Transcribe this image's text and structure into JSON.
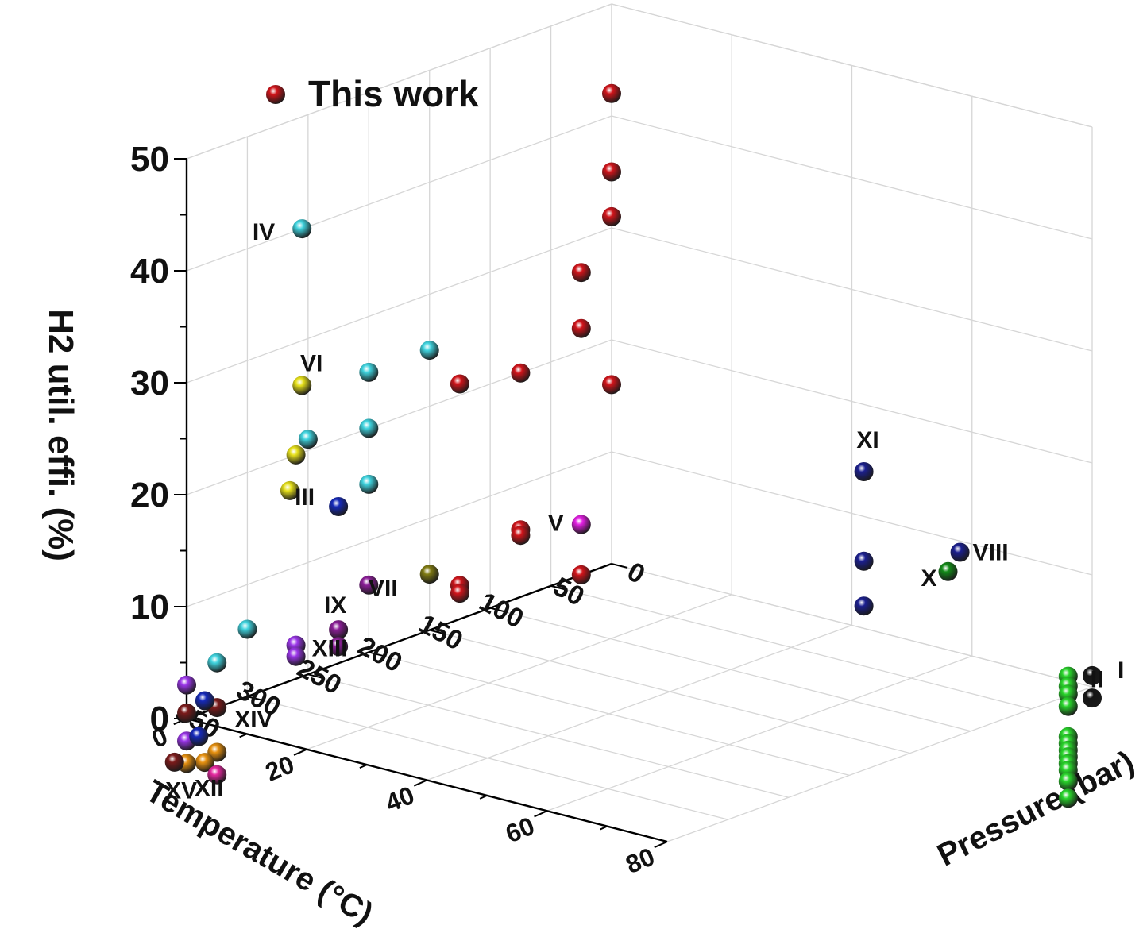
{
  "chart_data": {
    "type": "scatter3d",
    "title": "",
    "xlabel": "Temperature (°C)",
    "ylabel": "Pressure (bar)",
    "zlabel": "H2 util. effi. (%)",
    "xlim": [
      0,
      350
    ],
    "ylim": [
      0,
      80
    ],
    "zlim": [
      0,
      50
    ],
    "xticks": [
      "0",
      "50",
      "100",
      "150",
      "200",
      "250",
      "300",
      "350"
    ],
    "yticks": [
      "0",
      "20",
      "40",
      "60",
      "80"
    ],
    "zticks": [
      "0",
      "10",
      "20",
      "30",
      "40",
      "50"
    ],
    "grid": true,
    "legend": {
      "position": "top-left",
      "entries": [
        {
          "label": "This work",
          "color": "#d0141a"
        }
      ]
    },
    "series": [
      {
        "label": "This work",
        "color": "#d0141a",
        "points": [
          {
            "x": 0,
            "y": 0,
            "z": 42
          },
          {
            "x": 0,
            "y": 0,
            "z": 35
          },
          {
            "x": 0,
            "y": 0,
            "z": 31
          },
          {
            "x": 25,
            "y": 0,
            "z": 27
          },
          {
            "x": 25,
            "y": 0,
            "z": 22
          },
          {
            "x": 75,
            "y": 0,
            "z": 20
          },
          {
            "x": 125,
            "y": 0,
            "z": 21
          },
          {
            "x": 0,
            "y": 0,
            "z": 16
          },
          {
            "x": 75,
            "y": 0,
            "z": 6
          },
          {
            "x": 75,
            "y": 0,
            "z": 5.5
          },
          {
            "x": 125,
            "y": 0,
            "z": 3
          },
          {
            "x": 125,
            "y": 0,
            "z": 2.3
          },
          {
            "x": 25,
            "y": 0,
            "z": 0
          }
        ]
      },
      {
        "label": "I",
        "color": "#151515",
        "points": [
          {
            "x": 0,
            "y": 80,
            "z": 1.0
          },
          {
            "x": 0,
            "y": 80,
            "z": -1.0
          }
        ]
      },
      {
        "label": "II",
        "color": "#28d42a",
        "points": [
          {
            "x": 0,
            "y": 76,
            "z": 0.4
          },
          {
            "x": 0,
            "y": 76,
            "z": -0.5
          },
          {
            "x": 0,
            "y": 76,
            "z": -1.2
          },
          {
            "x": 0,
            "y": 76,
            "z": -2.3
          },
          {
            "x": 0,
            "y": 76,
            "z": -5.0
          },
          {
            "x": 0,
            "y": 76,
            "z": -5.6
          },
          {
            "x": 0,
            "y": 76,
            "z": -6.2
          },
          {
            "x": 0,
            "y": 76,
            "z": -6.8
          },
          {
            "x": 0,
            "y": 76,
            "z": -7.4
          },
          {
            "x": 0,
            "y": 76,
            "z": -8.0
          },
          {
            "x": 0,
            "y": 76,
            "z": -9.0
          },
          {
            "x": 0,
            "y": 76,
            "z": -10.5
          }
        ]
      },
      {
        "label": "III",
        "color": "#1529b8",
        "points": [
          {
            "x": 225,
            "y": 0,
            "z": 14
          }
        ]
      },
      {
        "label": "IV",
        "color": "#3fd3de",
        "points": [
          {
            "x": 255,
            "y": 0,
            "z": 40
          },
          {
            "x": 150,
            "y": 0,
            "z": 25
          },
          {
            "x": 200,
            "y": 0,
            "z": 25
          },
          {
            "x": 250,
            "y": 0,
            "z": 21
          },
          {
            "x": 200,
            "y": 0,
            "z": 20
          },
          {
            "x": 200,
            "y": 0,
            "z": 15
          },
          {
            "x": 300,
            "y": 0,
            "z": 6
          },
          {
            "x": 325,
            "y": 0,
            "z": 4
          }
        ]
      },
      {
        "label": "V",
        "color": "#e11ee1",
        "points": [
          {
            "x": 25,
            "y": 0,
            "z": 4.5
          }
        ]
      },
      {
        "label": "VI",
        "color": "#e6e01a",
        "points": [
          {
            "x": 255,
            "y": 0,
            "z": 26
          },
          {
            "x": 260,
            "y": 0,
            "z": 20
          },
          {
            "x": 265,
            "y": 0,
            "z": 17
          }
        ]
      },
      {
        "label": "VII",
        "color": "#7f7a12",
        "points": [
          {
            "x": 150,
            "y": 0,
            "z": 5
          }
        ]
      },
      {
        "label": "VIII",
        "color": "#1b1f8f",
        "points": [
          {
            "x": 0,
            "y": 58,
            "z": 9
          }
        ]
      },
      {
        "label": "IX",
        "color": "#8a1e96",
        "points": [
          {
            "x": 200,
            "y": 0,
            "z": 6
          },
          {
            "x": 225,
            "y": 0,
            "z": 3
          },
          {
            "x": 225,
            "y": 0,
            "z": 1.5
          }
        ]
      },
      {
        "label": "X",
        "color": "#138a18",
        "points": [
          {
            "x": 0,
            "y": 56,
            "z": 7
          }
        ]
      },
      {
        "label": "XI",
        "color": "#1b1f8f",
        "points": [
          {
            "x": 0,
            "y": 42,
            "z": 14
          },
          {
            "x": 0,
            "y": 42,
            "z": 6
          },
          {
            "x": 0,
            "y": 42,
            "z": 2
          }
        ]
      },
      {
        "label": "XII",
        "color": "#e6900f",
        "points": [
          {
            "x": 325,
            "y": 0,
            "z": -4
          },
          {
            "x": 335,
            "y": 0,
            "z": -4.5
          },
          {
            "x": 350,
            "y": 0,
            "z": -4
          }
        ]
      },
      {
        "label": "XIII",
        "color": "#9a35e8",
        "points": [
          {
            "x": 260,
            "y": 0,
            "z": 3
          },
          {
            "x": 260,
            "y": 0,
            "z": 2
          },
          {
            "x": 350,
            "y": 0,
            "z": 3
          },
          {
            "x": 350,
            "y": 0,
            "z": -2
          }
        ]
      },
      {
        "label": "XIV",
        "color": "#7a1a1a",
        "points": [
          {
            "x": 325,
            "y": 0,
            "z": 0
          },
          {
            "x": 350,
            "y": 0,
            "z": 0.5
          },
          {
            "x": 360,
            "y": 0,
            "z": -3.5
          }
        ]
      },
      {
        "label": "XV",
        "color": "#e3279e",
        "points": [
          {
            "x": 325,
            "y": 0,
            "z": -6
          }
        ]
      },
      {
        "label": "",
        "color": "#1529b8",
        "points": [
          {
            "x": 335,
            "y": 0,
            "z": 1
          },
          {
            "x": 340,
            "y": 0,
            "z": -2
          }
        ]
      }
    ],
    "annotations": [
      "I",
      "II",
      "III",
      "IV",
      "V",
      "VI",
      "VII",
      "VIII",
      "IX",
      "X",
      "XI",
      "XII",
      "XIII",
      "XIV",
      "XV"
    ]
  }
}
